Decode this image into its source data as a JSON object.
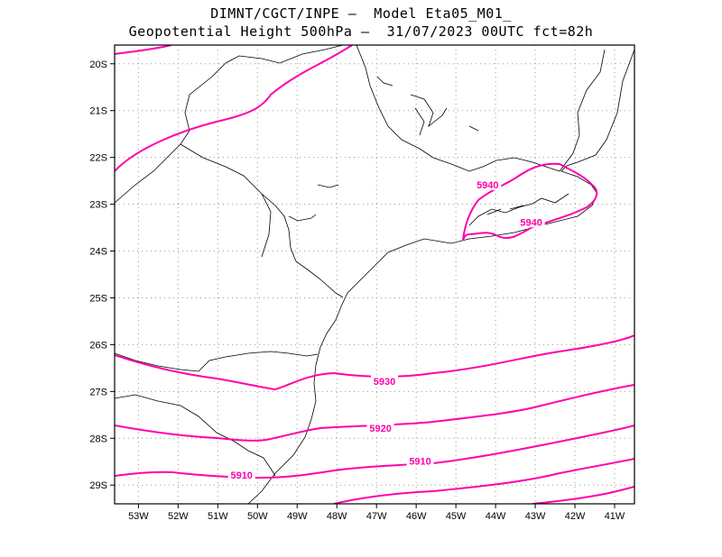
{
  "title_line1": "DIMNT/CGCT/INPE –  Model Eta05_M01_",
  "title_line2": "Geopotential Height 500hPa –  31/07/2023 00UTC fct=82h",
  "map": {
    "lon_range": [
      -53.6,
      -40.5
    ],
    "lat_range": [
      -29.4,
      -19.6
    ],
    "contour_color": "#ff00aa",
    "grid": "dotted",
    "x_ticks": [
      "53W",
      "52W",
      "51W",
      "50W",
      "49W",
      "48W",
      "47W",
      "46W",
      "45W",
      "44W",
      "43W",
      "42W",
      "41W"
    ],
    "y_ticks": [
      "20S",
      "21S",
      "22S",
      "23S",
      "24S",
      "25S",
      "26S",
      "27S",
      "28S",
      "29S"
    ],
    "contour_labels": [
      {
        "text": "5940",
        "lon": -44.2,
        "lat": -22.6
      },
      {
        "text": "5940",
        "lon": -43.1,
        "lat": -23.4
      },
      {
        "text": "5930",
        "lon": -46.8,
        "lat": -26.8
      },
      {
        "text": "5920",
        "lon": -46.9,
        "lat": -27.8
      },
      {
        "text": "5910",
        "lon": -45.9,
        "lat": -28.5
      },
      {
        "text": "5910",
        "lon": -50.4,
        "lat": -28.8
      }
    ]
  }
}
